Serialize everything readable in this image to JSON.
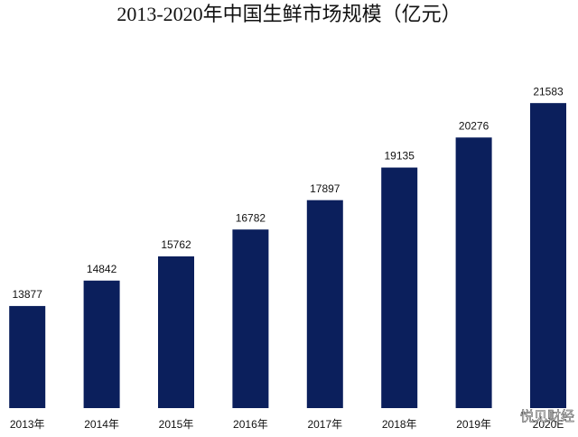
{
  "chart_data": {
    "type": "bar",
    "title": "2013-2020年中国生鲜市场规模（亿元）",
    "categories": [
      "2013年",
      "2014年",
      "2015年",
      "2016年",
      "2017年",
      "2018年",
      "2019年",
      "2020E"
    ],
    "values": [
      13877,
      14842,
      15762,
      16782,
      17897,
      19135,
      20276,
      21583
    ],
    "color": "#0b1f5c",
    "ylim": [
      10000,
      22000
    ],
    "watermark": "悦见财经"
  }
}
